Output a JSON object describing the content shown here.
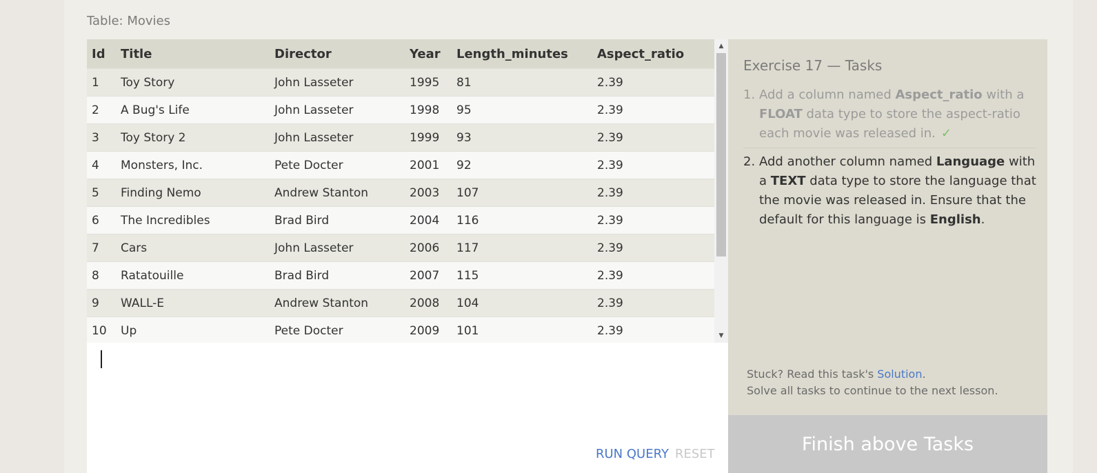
{
  "table": {
    "caption": "Table: Movies",
    "columns": [
      "Id",
      "Title",
      "Director",
      "Year",
      "Length_minutes",
      "Aspect_ratio"
    ],
    "rows": [
      [
        "1",
        "Toy Story",
        "John Lasseter",
        "1995",
        "81",
        "2.39"
      ],
      [
        "2",
        "A Bug's Life",
        "John Lasseter",
        "1998",
        "95",
        "2.39"
      ],
      [
        "3",
        "Toy Story 2",
        "John Lasseter",
        "1999",
        "93",
        "2.39"
      ],
      [
        "4",
        "Monsters, Inc.",
        "Pete Docter",
        "2001",
        "92",
        "2.39"
      ],
      [
        "5",
        "Finding Nemo",
        "Andrew Stanton",
        "2003",
        "107",
        "2.39"
      ],
      [
        "6",
        "The Incredibles",
        "Brad Bird",
        "2004",
        "116",
        "2.39"
      ],
      [
        "7",
        "Cars",
        "John Lasseter",
        "2006",
        "117",
        "2.39"
      ],
      [
        "8",
        "Ratatouille",
        "Brad Bird",
        "2007",
        "115",
        "2.39"
      ],
      [
        "9",
        "WALL-E",
        "Andrew Stanton",
        "2008",
        "104",
        "2.39"
      ],
      [
        "10",
        "Up",
        "Pete Docter",
        "2009",
        "101",
        "2.39"
      ]
    ]
  },
  "editor": {
    "value": "",
    "run_label": "RUN QUERY",
    "reset_label": "RESET"
  },
  "tasks": {
    "title": "Exercise 17 — Tasks",
    "items": [
      {
        "number": "1.",
        "parts": [
          {
            "text": "Add a column named "
          },
          {
            "text": "Aspect_ratio",
            "bold": true
          },
          {
            "text": " with a "
          },
          {
            "text": "FLOAT",
            "bold": true
          },
          {
            "text": " data type to store the aspect-ratio each movie was released in."
          }
        ],
        "done": true,
        "check": "✓"
      },
      {
        "number": "2.",
        "parts": [
          {
            "text": "Add another column named "
          },
          {
            "text": "Language",
            "bold": true
          },
          {
            "text": " with a "
          },
          {
            "text": "TEXT",
            "bold": true
          },
          {
            "text": " data type to store the language that the movie was released in. Ensure that the default for this language is "
          },
          {
            "text": "English",
            "bold": true
          },
          {
            "text": "."
          }
        ],
        "done": false
      }
    ],
    "stuck_prefix": "Stuck? Read this task's ",
    "solution_link": "Solution",
    "stuck_suffix": ".",
    "continue_text": "Solve all tasks to continue to the next lesson.",
    "finish_label": "Finish above Tasks"
  },
  "colors": {
    "accent": "#4a78c9",
    "check": "#7cbf6b",
    "finish_bg": "#c8c8c8"
  }
}
